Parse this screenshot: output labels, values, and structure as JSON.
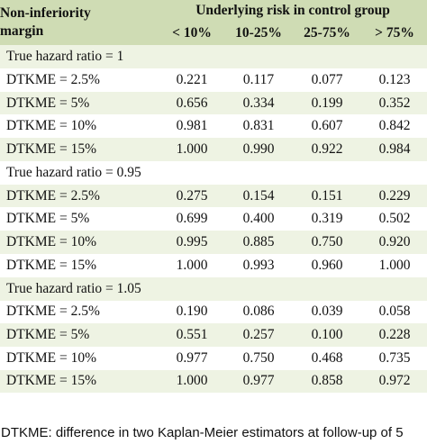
{
  "table": {
    "header": {
      "margin_label_line1": "Non-inferiority",
      "margin_label_line2": "margin",
      "group_label": "Underlying risk in control group",
      "columns": [
        "< 10%",
        "10-25%",
        "25-75%",
        "> 75%"
      ]
    },
    "groups": [
      {
        "title": "True hazard ratio = 1",
        "rows": [
          {
            "label": "DTKME = 2.5%",
            "values": [
              "0.221",
              "0.117",
              "0.077",
              "0.123"
            ]
          },
          {
            "label": "DTKME = 5%",
            "values": [
              "0.656",
              "0.334",
              "0.199",
              "0.352"
            ]
          },
          {
            "label": "DTKME = 10%",
            "values": [
              "0.981",
              "0.831",
              "0.607",
              "0.842"
            ]
          },
          {
            "label": "DTKME = 15%",
            "values": [
              "1.000",
              "0.990",
              "0.922",
              "0.984"
            ]
          }
        ]
      },
      {
        "title": "True hazard ratio = 0.95",
        "rows": [
          {
            "label": "DTKME = 2.5%",
            "values": [
              "0.275",
              "0.154",
              "0.151",
              "0.229"
            ]
          },
          {
            "label": "DTKME = 5%",
            "values": [
              "0.699",
              "0.400",
              "0.319",
              "0.502"
            ]
          },
          {
            "label": "DTKME = 10%",
            "values": [
              "0.995",
              "0.885",
              "0.750",
              "0.920"
            ]
          },
          {
            "label": "DTKME = 15%",
            "values": [
              "1.000",
              "0.993",
              "0.960",
              "1.000"
            ]
          }
        ]
      },
      {
        "title": "True hazard ratio = 1.05",
        "rows": [
          {
            "label": "DTKME = 2.5%",
            "values": [
              "0.190",
              "0.086",
              "0.039",
              "0.058"
            ]
          },
          {
            "label": "DTKME = 5%",
            "values": [
              "0.551",
              "0.257",
              "0.100",
              "0.228"
            ]
          },
          {
            "label": "DTKME = 10%",
            "values": [
              "0.977",
              "0.750",
              "0.468",
              "0.735"
            ]
          },
          {
            "label": "DTKME = 15%",
            "values": [
              "1.000",
              "0.977",
              "0.858",
              "0.972"
            ]
          }
        ]
      }
    ]
  },
  "footnote": "DTKME: difference in two Kaplan-Meier estimators at follow-up of 5",
  "colors": {
    "header_bg": "#cfdcb4",
    "shade_bg": "#eef3e3"
  }
}
